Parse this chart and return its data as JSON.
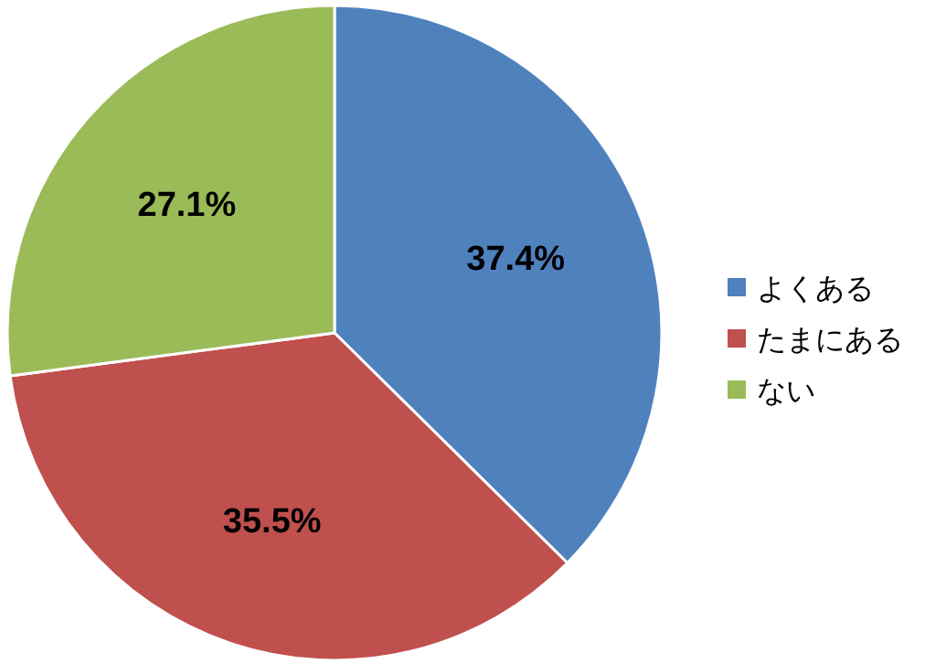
{
  "chart_data": {
    "type": "pie",
    "categories": [
      "よくある",
      "たまにある",
      "ない"
    ],
    "values": [
      37.4,
      35.5,
      27.1
    ],
    "value_labels": [
      "37.4%",
      "35.5%",
      "27.1%"
    ],
    "colors": [
      "#4f81bd",
      "#c0504d",
      "#9bbb59"
    ],
    "legend": "right"
  }
}
